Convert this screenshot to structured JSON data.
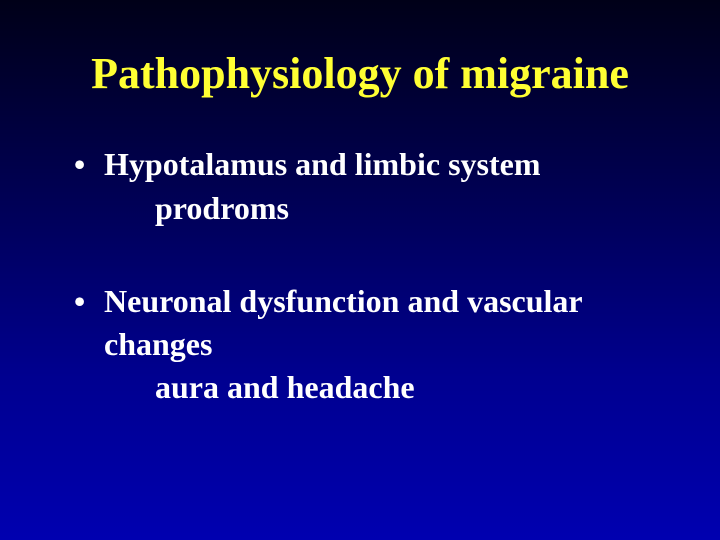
{
  "slide": {
    "background_gradient_top": "#000018",
    "background_gradient_bottom": "#0000b0",
    "title": {
      "text": "Pathophysiology of migraine",
      "color": "#ffff33",
      "fontsize_pt": 44,
      "font_weight": "bold",
      "font_family": "Times New Roman"
    },
    "body_color": "#ffffff",
    "body_fontsize_pt": 32,
    "body_font_weight": "bold",
    "bullets": [
      {
        "main": "Hypotalamus and limbic system",
        "sub": "prodroms"
      },
      {
        "main": "Neuronal dysfunction and vascular changes",
        "sub": "aura and headache"
      }
    ],
    "bullet_glyph": "•"
  }
}
